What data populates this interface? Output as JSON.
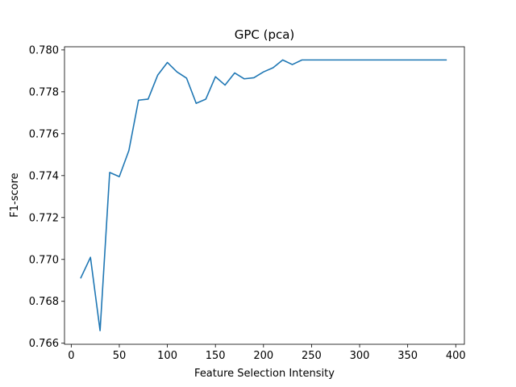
{
  "chart_data": {
    "type": "line",
    "title": "GPC (pca)",
    "xlabel": "Feature Selection Intensity",
    "ylabel": "F1-score",
    "xlim": [
      -7,
      409
    ],
    "ylim": [
      0.76595,
      0.78015
    ],
    "xticks": [
      0,
      50,
      100,
      150,
      200,
      250,
      300,
      350,
      400
    ],
    "yticks": [
      0.766,
      0.768,
      0.77,
      0.772,
      0.774,
      0.776,
      0.778,
      0.78
    ],
    "grid": false,
    "series": [
      {
        "color": "#1f77b4",
        "x": [
          10,
          20,
          30,
          40,
          50,
          60,
          70,
          80,
          90,
          100,
          110,
          120,
          130,
          140,
          150,
          160,
          170,
          180,
          190,
          200,
          210,
          220,
          230,
          240,
          250,
          260,
          270,
          280,
          290,
          300,
          310,
          320,
          330,
          340,
          350,
          360,
          370,
          380,
          390
        ],
        "y": [
          0.76912,
          0.7701,
          0.7666,
          0.77415,
          0.77395,
          0.7752,
          0.7776,
          0.77765,
          0.7788,
          0.7794,
          0.77895,
          0.77865,
          0.77745,
          0.77765,
          0.77872,
          0.77832,
          0.7789,
          0.77862,
          0.77867,
          0.77895,
          0.77915,
          0.77952,
          0.7793,
          0.77952,
          0.77952,
          0.77952,
          0.77952,
          0.77952,
          0.77952,
          0.77952,
          0.77952,
          0.77952,
          0.77952,
          0.77952,
          0.77952,
          0.77952,
          0.77952,
          0.77952,
          0.77952
        ]
      }
    ]
  }
}
